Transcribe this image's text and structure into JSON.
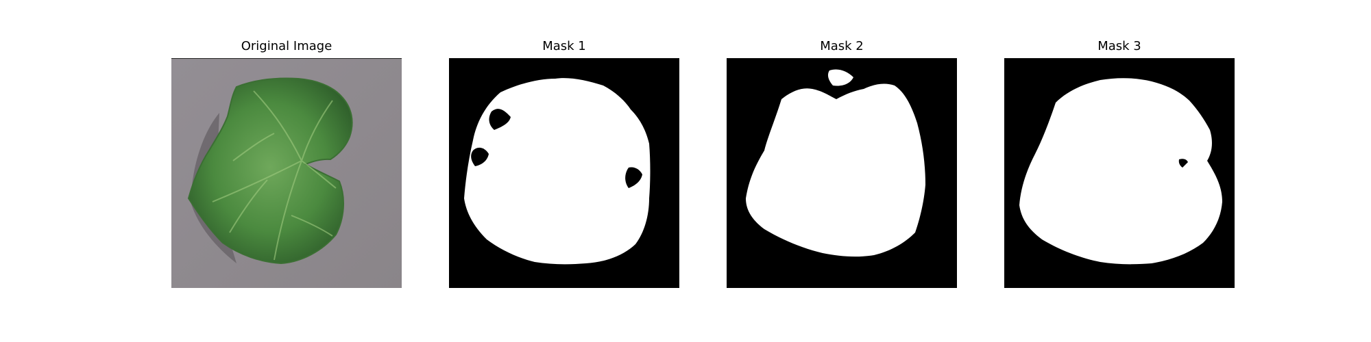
{
  "figure": {
    "panels": [
      {
        "title": "Original Image"
      },
      {
        "title": "Mask 1"
      },
      {
        "title": "Mask 2"
      },
      {
        "title": "Mask 3"
      }
    ]
  },
  "colors": {
    "background_gray": "#8f8a8e",
    "leaf_dark": "#2f5f2b",
    "leaf_mid": "#4b8a3f",
    "leaf_light": "#6fa85b",
    "mask_background": "#000000",
    "mask_foreground": "#ffffff"
  }
}
